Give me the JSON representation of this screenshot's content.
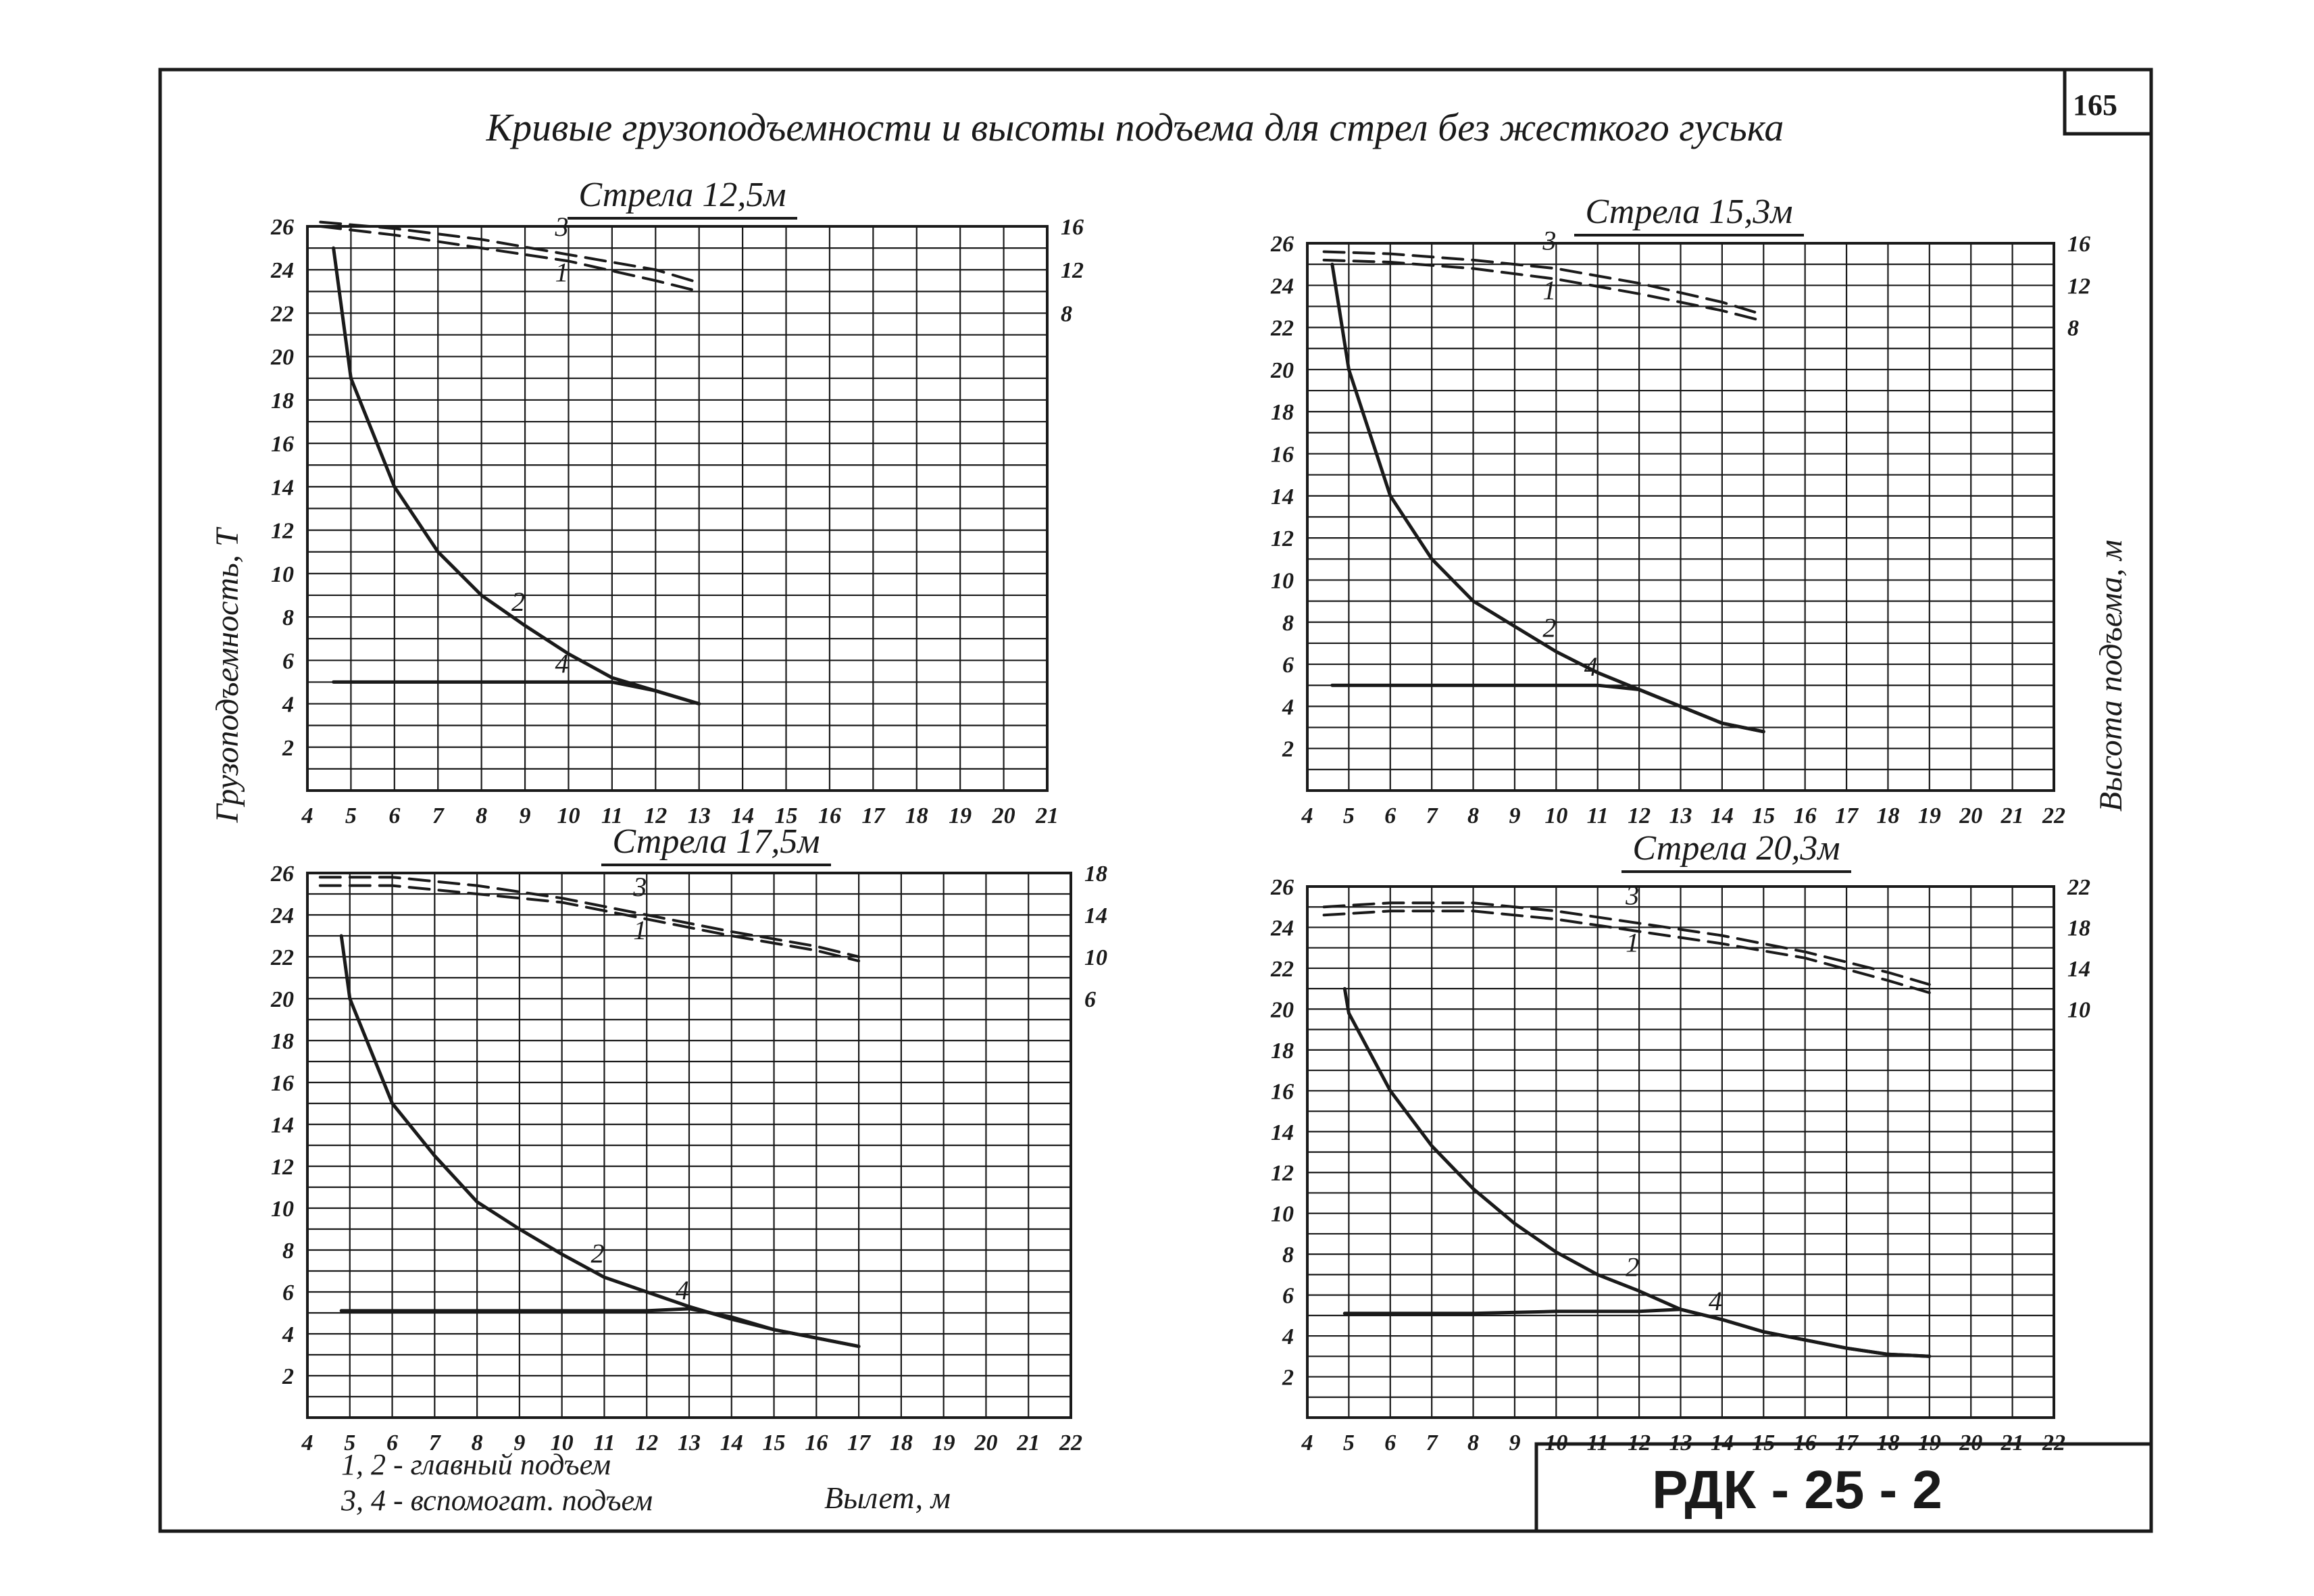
{
  "page": {
    "title": "Кривые грузоподъемности и высоты подъема для стрел без жесткого гуська",
    "page_number": "165",
    "doc_code": "РДК - 25 - 2",
    "ylabel_left": "Грузоподъемность, Т",
    "ylabel_right": "Высота подъема, м",
    "xlabel": "Вылет, м",
    "legend_line1": "1, 2 - главный подъем",
    "legend_line2": "3, 4 - вспомогат. подъем"
  },
  "colors": {
    "ink": "#1a1a1a",
    "paper": "#ffffff"
  },
  "chart_data": [
    {
      "type": "line",
      "title": "Стрела 12,5м",
      "xlim": [
        4,
        21
      ],
      "x_ticks": [
        4,
        5,
        6,
        7,
        8,
        9,
        10,
        11,
        12,
        13,
        14,
        15,
        16,
        17,
        18,
        19,
        20,
        21
      ],
      "ylim": [
        0,
        26
      ],
      "y_ticks": [
        2,
        4,
        6,
        8,
        10,
        12,
        14,
        16,
        18,
        20,
        22,
        24,
        26
      ],
      "y2_ticks": [
        8,
        12,
        16
      ],
      "series": [
        {
          "name": "1",
          "style": "dashed",
          "x": [
            4.3,
            6,
            8,
            10,
            12,
            13
          ],
          "y": [
            26.0,
            25.6,
            25.0,
            24.4,
            23.5,
            23.0
          ]
        },
        {
          "name": "3",
          "style": "dashed",
          "x": [
            4.3,
            6,
            8,
            10,
            12,
            13
          ],
          "y": [
            26.2,
            25.9,
            25.4,
            24.7,
            24.0,
            23.4
          ]
        },
        {
          "name": "2",
          "style": "solid",
          "x": [
            4.6,
            5,
            6,
            7,
            8,
            9,
            10,
            11,
            12,
            13
          ],
          "y": [
            25.0,
            19.0,
            14.0,
            11.0,
            9.0,
            7.6,
            6.3,
            5.2,
            4.6,
            4.0
          ]
        },
        {
          "name": "4",
          "style": "solid",
          "x": [
            4.6,
            6,
            8,
            10,
            11,
            12,
            13
          ],
          "y": [
            5.0,
            5.0,
            5.0,
            5.0,
            5.0,
            4.6,
            4.0
          ]
        }
      ]
    },
    {
      "type": "line",
      "title": "Стрела 15,3м",
      "xlim": [
        4,
        22
      ],
      "x_ticks": [
        4,
        5,
        6,
        7,
        8,
        9,
        10,
        11,
        12,
        13,
        14,
        15,
        16,
        17,
        18,
        19,
        20,
        21,
        22
      ],
      "ylim": [
        0,
        26
      ],
      "y_ticks": [
        2,
        4,
        6,
        8,
        10,
        12,
        14,
        16,
        18,
        20,
        22,
        24,
        26
      ],
      "y2_ticks": [
        8,
        12,
        16
      ],
      "series": [
        {
          "name": "1",
          "style": "dashed",
          "x": [
            4.4,
            6,
            8,
            10,
            12,
            14,
            15
          ],
          "y": [
            25.2,
            25.1,
            24.8,
            24.3,
            23.6,
            22.8,
            22.3
          ]
        },
        {
          "name": "3",
          "style": "dashed",
          "x": [
            4.4,
            6,
            8,
            10,
            12,
            14,
            15
          ],
          "y": [
            25.6,
            25.5,
            25.2,
            24.8,
            24.1,
            23.2,
            22.6
          ]
        },
        {
          "name": "2",
          "style": "solid",
          "x": [
            4.6,
            5,
            6,
            7,
            8,
            9,
            10,
            11,
            12,
            13,
            14,
            15
          ],
          "y": [
            25.0,
            20.0,
            14.0,
            11.0,
            9.0,
            7.8,
            6.6,
            5.6,
            4.8,
            4.0,
            3.2,
            2.8
          ]
        },
        {
          "name": "4",
          "style": "solid",
          "x": [
            4.6,
            6,
            8,
            10,
            11,
            12,
            13,
            14,
            15
          ],
          "y": [
            5.0,
            5.0,
            5.0,
            5.0,
            5.0,
            4.8,
            4.0,
            3.2,
            2.8
          ]
        }
      ]
    },
    {
      "type": "line",
      "title": "Стрела 17,5м",
      "xlim": [
        4,
        22
      ],
      "x_ticks": [
        4,
        5,
        6,
        7,
        8,
        9,
        10,
        11,
        12,
        13,
        14,
        15,
        16,
        17,
        18,
        19,
        20,
        21,
        22
      ],
      "ylim": [
        0,
        26
      ],
      "y_ticks": [
        2,
        4,
        6,
        8,
        10,
        12,
        14,
        16,
        18,
        20,
        22,
        24,
        26
      ],
      "y2_ticks": [
        6,
        10,
        14,
        18
      ],
      "series": [
        {
          "name": "1",
          "style": "dashed",
          "x": [
            4.3,
            6,
            8,
            10,
            12,
            14,
            16,
            17
          ],
          "y": [
            25.4,
            25.4,
            25.0,
            24.6,
            23.8,
            23.0,
            22.3,
            21.8
          ]
        },
        {
          "name": "3",
          "style": "dashed",
          "x": [
            4.3,
            6,
            8,
            10,
            12,
            14,
            16,
            17
          ],
          "y": [
            25.8,
            25.8,
            25.4,
            24.8,
            24.0,
            23.2,
            22.5,
            22.0
          ]
        },
        {
          "name": "2",
          "style": "solid",
          "x": [
            4.8,
            5,
            6,
            7,
            8,
            9,
            10,
            11,
            12,
            13,
            14,
            15,
            16,
            17
          ],
          "y": [
            23.0,
            20.0,
            15.0,
            12.5,
            10.3,
            9.0,
            7.8,
            6.7,
            6.0,
            5.3,
            4.7,
            4.2,
            3.8,
            3.4
          ]
        },
        {
          "name": "4",
          "style": "solid",
          "x": [
            4.8,
            6,
            8,
            10,
            12,
            13,
            14,
            15,
            16,
            17
          ],
          "y": [
            5.1,
            5.1,
            5.1,
            5.1,
            5.1,
            5.2,
            4.8,
            4.2,
            3.8,
            3.4
          ]
        }
      ]
    },
    {
      "type": "line",
      "title": "Стрела 20,3м",
      "xlim": [
        4,
        22
      ],
      "x_ticks": [
        4,
        5,
        6,
        7,
        8,
        9,
        10,
        11,
        12,
        13,
        14,
        15,
        16,
        17,
        18,
        19,
        20,
        21,
        22
      ],
      "ylim": [
        0,
        26
      ],
      "y_ticks": [
        2,
        4,
        6,
        8,
        10,
        12,
        14,
        16,
        18,
        20,
        22,
        24,
        26
      ],
      "y2_ticks": [
        10,
        14,
        18,
        22
      ],
      "series": [
        {
          "name": "1",
          "style": "dashed",
          "x": [
            4.4,
            6,
            8,
            10,
            12,
            14,
            16,
            18,
            19
          ],
          "y": [
            24.6,
            24.8,
            24.8,
            24.4,
            23.8,
            23.2,
            22.5,
            21.4,
            20.8
          ]
        },
        {
          "name": "3",
          "style": "dashed",
          "x": [
            4.4,
            6,
            8,
            10,
            12,
            14,
            16,
            18,
            19
          ],
          "y": [
            25.0,
            25.2,
            25.2,
            24.8,
            24.2,
            23.6,
            22.8,
            21.8,
            21.2
          ]
        },
        {
          "name": "2",
          "style": "solid",
          "x": [
            4.9,
            5,
            6,
            7,
            8,
            9,
            10,
            11,
            12,
            13,
            14,
            15,
            16,
            17,
            18,
            19
          ],
          "y": [
            21.0,
            19.8,
            16.0,
            13.3,
            11.2,
            9.5,
            8.1,
            7.0,
            6.2,
            5.3,
            4.8,
            4.2,
            3.8,
            3.4,
            3.1,
            3.0
          ]
        },
        {
          "name": "4",
          "style": "solid",
          "x": [
            4.9,
            6,
            8,
            10,
            12,
            13,
            14,
            15,
            16,
            17,
            18,
            19
          ],
          "y": [
            5.1,
            5.1,
            5.1,
            5.2,
            5.2,
            5.3,
            4.8,
            4.2,
            3.8,
            3.4,
            3.1,
            3.0
          ]
        }
      ]
    }
  ]
}
